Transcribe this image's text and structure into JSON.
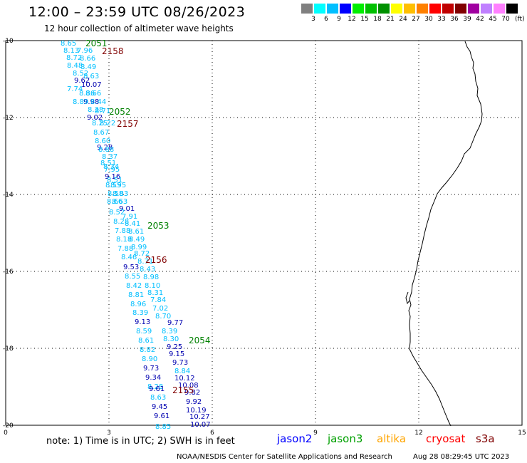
{
  "title": "12:00 – 23:59 UTC 08/26/2023",
  "subtitle": "12 hour collection of altimeter wave heights",
  "legend": {
    "colors": [
      "#808080",
      "#00ffff",
      "#00bfff",
      "#0000ff",
      "#00ee00",
      "#00c000",
      "#009000",
      "#ffff00",
      "#ffbf00",
      "#ff8000",
      "#ff0000",
      "#c00000",
      "#800000",
      "#a000a0",
      "#c080ff",
      "#ff80ff",
      "#000000"
    ],
    "labels": [
      "3",
      "6",
      "9",
      "12",
      "15",
      "18",
      "21",
      "24",
      "27",
      "30",
      "33",
      "36",
      "39",
      "42",
      "45",
      "70"
    ],
    "unit": "(ft)"
  },
  "axes": {
    "lat_labels": [
      "-10",
      "-12",
      "-14",
      "-16",
      "-18",
      "-20"
    ],
    "lon_labels": [
      "0",
      "3",
      "6",
      "9",
      "12",
      "15"
    ]
  },
  "pass_labels": [
    {
      "text": "2051",
      "color": "#008000"
    },
    {
      "text": "2158",
      "color": "#800000"
    },
    {
      "text": "2052",
      "color": "#008000"
    },
    {
      "text": "2157",
      "color": "#800000"
    },
    {
      "text": "2053",
      "color": "#008000"
    },
    {
      "text": "2156",
      "color": "#800000"
    },
    {
      "text": "2054",
      "color": "#008000"
    },
    {
      "text": "2155",
      "color": "#800000"
    }
  ],
  "wave_heights": [
    {
      "v": "8.65",
      "c": "#00bfff"
    },
    {
      "v": "8.13",
      "c": "#00bfff"
    },
    {
      "v": "7.96",
      "c": "#00bfff"
    },
    {
      "v": "8.72",
      "c": "#00bfff"
    },
    {
      "v": "8.66",
      "c": "#00bfff"
    },
    {
      "v": "8.48",
      "c": "#00bfff"
    },
    {
      "v": "8.49",
      "c": "#00bfff"
    },
    {
      "v": "8.52",
      "c": "#00bfff"
    },
    {
      "v": "8.63",
      "c": "#00bfff"
    },
    {
      "v": "9.62",
      "c": "#0000b0"
    },
    {
      "v": "10.07",
      "c": "#0000b0"
    },
    {
      "v": "7.74",
      "c": "#00bfff"
    },
    {
      "v": "8.86",
      "c": "#00bfff"
    },
    {
      "v": "8.66",
      "c": "#00bfff"
    },
    {
      "v": "9.98",
      "c": "#0000b0"
    },
    {
      "v": "8.89",
      "c": "#00bfff"
    },
    {
      "v": "8.44",
      "c": "#00bfff"
    },
    {
      "v": "8.38",
      "c": "#00bfff"
    },
    {
      "v": "8.71",
      "c": "#00bfff"
    },
    {
      "v": "9.02",
      "c": "#0000b0"
    },
    {
      "v": "8.25",
      "c": "#00bfff"
    },
    {
      "v": "8.22",
      "c": "#00bfff"
    },
    {
      "v": "8.67",
      "c": "#00bfff"
    },
    {
      "v": "8.60",
      "c": "#00bfff"
    },
    {
      "v": "9.28",
      "c": "#0000b0"
    },
    {
      "v": "8.88",
      "c": "#00bfff"
    },
    {
      "v": "8.37",
      "c": "#00bfff"
    },
    {
      "v": "8.51",
      "c": "#00bfff"
    },
    {
      "v": "8.34",
      "c": "#00bfff"
    },
    {
      "v": "7.95",
      "c": "#00bfff"
    },
    {
      "v": "9.16",
      "c": "#0000b0"
    },
    {
      "v": "8.51",
      "c": "#00bfff"
    },
    {
      "v": "8.55",
      "c": "#00bfff"
    },
    {
      "v": "8.95",
      "c": "#00bfff"
    },
    {
      "v": "8.58",
      "c": "#00bfff"
    },
    {
      "v": "8.83",
      "c": "#00bfff"
    },
    {
      "v": "8.66",
      "c": "#00bfff"
    },
    {
      "v": "8.63",
      "c": "#00bfff"
    },
    {
      "v": "9.01",
      "c": "#0000b0"
    },
    {
      "v": "8.52",
      "c": "#00bfff"
    },
    {
      "v": "7.91",
      "c": "#00bfff"
    },
    {
      "v": "8.28",
      "c": "#00bfff"
    },
    {
      "v": "8.41",
      "c": "#00bfff"
    },
    {
      "v": "7.88",
      "c": "#00bfff"
    },
    {
      "v": "8.61",
      "c": "#00bfff"
    },
    {
      "v": "8.18",
      "c": "#00bfff"
    },
    {
      "v": "8.49",
      "c": "#00bfff"
    },
    {
      "v": "7.88",
      "c": "#00bfff"
    },
    {
      "v": "8.99",
      "c": "#00bfff"
    },
    {
      "v": "8.46",
      "c": "#00bfff"
    },
    {
      "v": "8.72",
      "c": "#00bfff"
    },
    {
      "v": "8.71",
      "c": "#00bfff"
    },
    {
      "v": "9.53",
      "c": "#0000b0"
    },
    {
      "v": "8.43",
      "c": "#00bfff"
    },
    {
      "v": "8.55",
      "c": "#00bfff"
    },
    {
      "v": "8.98",
      "c": "#00bfff"
    },
    {
      "v": "8.42",
      "c": "#00bfff"
    },
    {
      "v": "8.10",
      "c": "#00bfff"
    },
    {
      "v": "8.81",
      "c": "#00bfff"
    },
    {
      "v": "8.31",
      "c": "#00bfff"
    },
    {
      "v": "8.96",
      "c": "#00bfff"
    },
    {
      "v": "7.84",
      "c": "#00bfff"
    },
    {
      "v": "7.02",
      "c": "#00bfff"
    },
    {
      "v": "8.39",
      "c": "#00bfff"
    },
    {
      "v": "8.70",
      "c": "#00bfff"
    },
    {
      "v": "9.13",
      "c": "#0000b0"
    },
    {
      "v": "9.77",
      "c": "#0000b0"
    },
    {
      "v": "8.59",
      "c": "#00bfff"
    },
    {
      "v": "8.39",
      "c": "#00bfff"
    },
    {
      "v": "8.61",
      "c": "#00bfff"
    },
    {
      "v": "8.30",
      "c": "#00bfff"
    },
    {
      "v": "9.25",
      "c": "#0000b0"
    },
    {
      "v": "8.82",
      "c": "#00bfff"
    },
    {
      "v": "9.15",
      "c": "#0000b0"
    },
    {
      "v": "8.90",
      "c": "#00bfff"
    },
    {
      "v": "9.73",
      "c": "#0000b0"
    },
    {
      "v": "9.73",
      "c": "#0000b0"
    },
    {
      "v": "8.84",
      "c": "#00bfff"
    },
    {
      "v": "9.34",
      "c": "#0000b0"
    },
    {
      "v": "10.12",
      "c": "#0000b0"
    },
    {
      "v": "8.28",
      "c": "#00bfff"
    },
    {
      "v": "10.08",
      "c": "#0000b0"
    },
    {
      "v": "9.61",
      "c": "#0000b0"
    },
    {
      "v": "9.82",
      "c": "#0000b0"
    },
    {
      "v": "8.63",
      "c": "#00bfff"
    },
    {
      "v": "9.92",
      "c": "#0000b0"
    },
    {
      "v": "9.45",
      "c": "#0000b0"
    },
    {
      "v": "10.19",
      "c": "#0000b0"
    },
    {
      "v": "9.61",
      "c": "#0000b0"
    },
    {
      "v": "10.27",
      "c": "#0000b0"
    },
    {
      "v": "8.85",
      "c": "#00bfff"
    },
    {
      "v": "10.07",
      "c": "#0000b0"
    }
  ],
  "satellites": [
    {
      "name": "jason2",
      "color": "#0000ff"
    },
    {
      "name": "jason3",
      "color": "#00a000"
    },
    {
      "name": "altika",
      "color": "#ffa500"
    },
    {
      "name": "cryosat",
      "color": "#ff0000"
    },
    {
      "name": "s3a",
      "color": "#800000"
    }
  ],
  "note": "note: 1) Time is in UTC; 2) SWH is in feet",
  "credit": "NOAA/NESDIS Center for Satellite Applications and Research",
  "timestamp": "Aug 28 08:29:45 UTC 2023"
}
